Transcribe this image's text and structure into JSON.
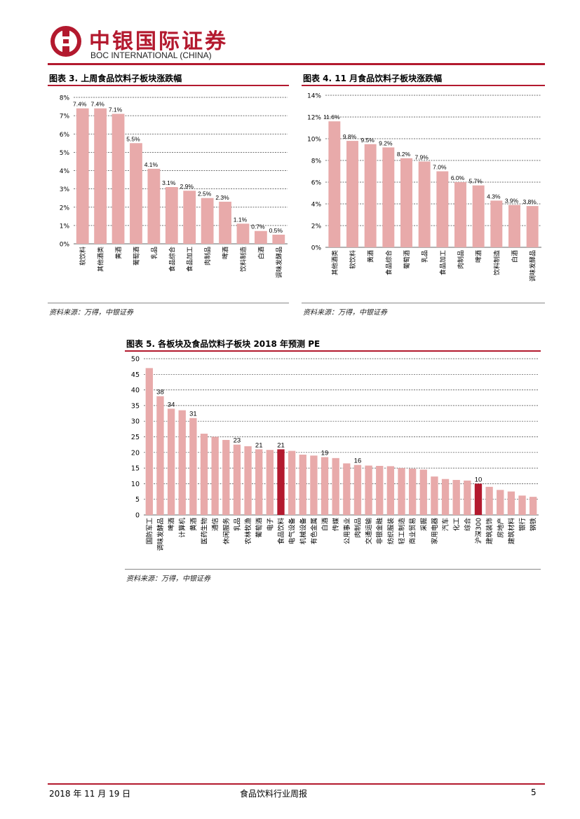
{
  "header": {
    "brand_cn": "中银国际证券",
    "brand_en": "BOC INTERNATIONAL (CHINA)",
    "logo_icon": "boc-coin-logo-icon",
    "accent": "#b3192e"
  },
  "charts": {
    "fig3": {
      "title": "图表 3. 上周食品饮料子板块涨跌幅",
      "source": "资料来源：万得，中银证券"
    },
    "fig4": {
      "title": "图表 4. 11 月食品饮料子板块涨跌幅",
      "source": "资料来源：万得，中银证券"
    },
    "fig5": {
      "title": "图表 5. 各板块及食品饮料子板块 2018 年预测 PE",
      "source": "资料来源：万得，中银证券"
    }
  },
  "chart_data": [
    {
      "type": "bar",
      "title": "",
      "categories": [
        "软饮料",
        "其他酒类",
        "黄酒",
        "葡萄酒",
        "乳品",
        "食品综合",
        "食品加工",
        "肉制品",
        "啤酒",
        "饮料制造",
        "白酒",
        "调味发酵品"
      ],
      "values": [
        7.4,
        7.4,
        7.1,
        5.5,
        4.1,
        3.1,
        2.9,
        2.5,
        2.3,
        1.1,
        0.7,
        0.5
      ],
      "labels": [
        "7.4%",
        "7.4%",
        "7.1%",
        "5.5%",
        "4.1%",
        "3.1%",
        "2.9%",
        "2.5%",
        "2.3%",
        "1.1%",
        "0.7%",
        "0.5%"
      ],
      "yticks": [
        "0%",
        "1%",
        "2%",
        "3%",
        "4%",
        "5%",
        "6%",
        "7%",
        "8%"
      ],
      "ylim": [
        0,
        8
      ],
      "grid": true,
      "bar_color": "#e8aaaa"
    },
    {
      "type": "bar",
      "title": "",
      "categories": [
        "其他酒类",
        "软饮料",
        "黄酒",
        "食品综合",
        "葡萄酒",
        "乳品",
        "食品加工",
        "肉制品",
        "啤酒",
        "饮料制造",
        "白酒",
        "调味发酵品"
      ],
      "values": [
        11.6,
        9.8,
        9.5,
        9.2,
        8.2,
        7.9,
        7.0,
        6.0,
        5.7,
        4.3,
        3.9,
        3.8
      ],
      "labels": [
        "11.6%",
        "9.8%",
        "9.5%",
        "9.2%",
        "8.2%",
        "7.9%",
        "7.0%",
        "6.0%",
        "5.7%",
        "4.3%",
        "3.9%",
        "3.8%"
      ],
      "yticks": [
        "0%",
        "2%",
        "4%",
        "6%",
        "8%",
        "10%",
        "12%",
        "14%"
      ],
      "ylim": [
        0,
        14
      ],
      "grid": true,
      "bar_color": "#e8aaaa"
    },
    {
      "type": "bar",
      "title": "",
      "categories": [
        "国防军工",
        "调味发酵品",
        "啤酒",
        "计算机",
        "黄酒",
        "医药生物",
        "通信",
        "休闲服务",
        "乳品",
        "农林牧渔",
        "葡萄酒",
        "电子",
        "食品饮料",
        "电气设备",
        "机械设备",
        "有色金属",
        "白酒",
        "传媒",
        "公用事业",
        "肉制品",
        "交通运输",
        "非银金融",
        "纺织服装",
        "轻工制造",
        "商业贸易",
        "采掘",
        "家用电器",
        "汽车",
        "化工",
        "综合",
        "沪深300",
        "建筑装饰",
        "房地产",
        "建筑材料",
        "银行",
        "钢铁"
      ],
      "values": [
        47,
        38,
        34,
        33.5,
        31,
        26,
        25,
        24,
        22.5,
        22,
        21,
        20.8,
        21,
        20.5,
        19.3,
        19,
        18.5,
        18.2,
        16.5,
        16,
        15.8,
        15.7,
        15.6,
        15,
        14.8,
        14.5,
        12.3,
        11.5,
        11.2,
        11,
        10,
        9,
        8,
        7.5,
        6.2,
        5.8
      ],
      "labels": [
        "",
        "38",
        "34",
        "",
        "31",
        "",
        "",
        "",
        "23",
        "",
        "21",
        "",
        "21",
        "",
        "",
        "",
        "19",
        "",
        "",
        "16",
        "",
        "",
        "",
        "",
        "",
        "",
        "",
        "",
        "",
        "",
        "10",
        "",
        "",
        "",
        "",
        ""
      ],
      "highlight": [
        "食品饮料",
        "沪深300"
      ],
      "yticks": [
        "0",
        "5",
        "10",
        "15",
        "20",
        "25",
        "30",
        "35",
        "40",
        "45",
        "50"
      ],
      "ylim": [
        0,
        50
      ],
      "grid": true,
      "bar_color": "#e8aaaa",
      "highlight_color": "#b3192e"
    }
  ],
  "footer": {
    "date": "2018 年 11 月 19 日",
    "title": "食品饮料行业周报",
    "page": "5"
  }
}
